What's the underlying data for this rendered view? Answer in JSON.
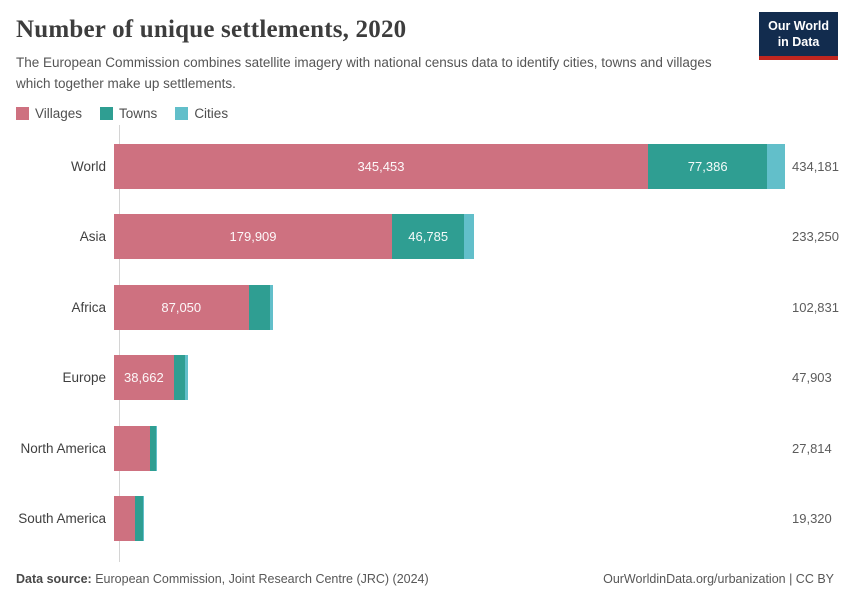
{
  "header": {
    "title": "Number of unique settlements, 2020",
    "subtitle": "The European Commission combines satellite imagery with national census data to identify cities, towns and villages which together make up settlements."
  },
  "logo": {
    "line1": "Our World",
    "line2": "in Data",
    "bg_color": "#122c4e",
    "stripe_color": "#c0261f"
  },
  "legend": {
    "items": [
      {
        "label": "Villages",
        "color": "#ce7180"
      },
      {
        "label": "Towns",
        "color": "#2f9e92"
      },
      {
        "label": "Cities",
        "color": "#62bfca"
      }
    ]
  },
  "chart_data": {
    "type": "bar",
    "orientation": "horizontal",
    "stacked": true,
    "title": "Number of unique settlements, 2020",
    "categories": [
      "World",
      "Asia",
      "Africa",
      "Europe",
      "North America",
      "South America"
    ],
    "series": [
      {
        "name": "Villages",
        "color": "#ce7180",
        "values": [
          345453,
          179909,
          87050,
          38662,
          23300,
          13600
        ]
      },
      {
        "name": "Towns",
        "color": "#2f9e92",
        "values": [
          77386,
          46785,
          13900,
          7300,
          3880,
          5100
        ]
      },
      {
        "name": "Cities",
        "color": "#62bfca",
        "values": [
          11342,
          6556,
          1881,
          1941,
          634,
          620
        ]
      }
    ],
    "totals": [
      434181,
      233250,
      102831,
      47903,
      27814,
      19320
    ],
    "total_labels": [
      "434,181",
      "233,250",
      "102,831",
      "47,903",
      "27,814",
      "19,320"
    ],
    "visible_segment_labels": [
      [
        "345,453",
        "77,386",
        ""
      ],
      [
        "179,909",
        "46,785",
        ""
      ],
      [
        "87,050",
        "",
        ""
      ],
      [
        "38,662",
        "",
        ""
      ],
      [
        "",
        "",
        ""
      ],
      [
        "",
        "",
        ""
      ]
    ],
    "xlim": [
      0,
      434181
    ],
    "grid": false,
    "legend_position": "top-left"
  },
  "footer": {
    "source_label": "Data source:",
    "source_text": " European Commission, Joint Research Centre (JRC) (2024)",
    "link_text": "OurWorldinData.org/urbanization | CC BY"
  }
}
